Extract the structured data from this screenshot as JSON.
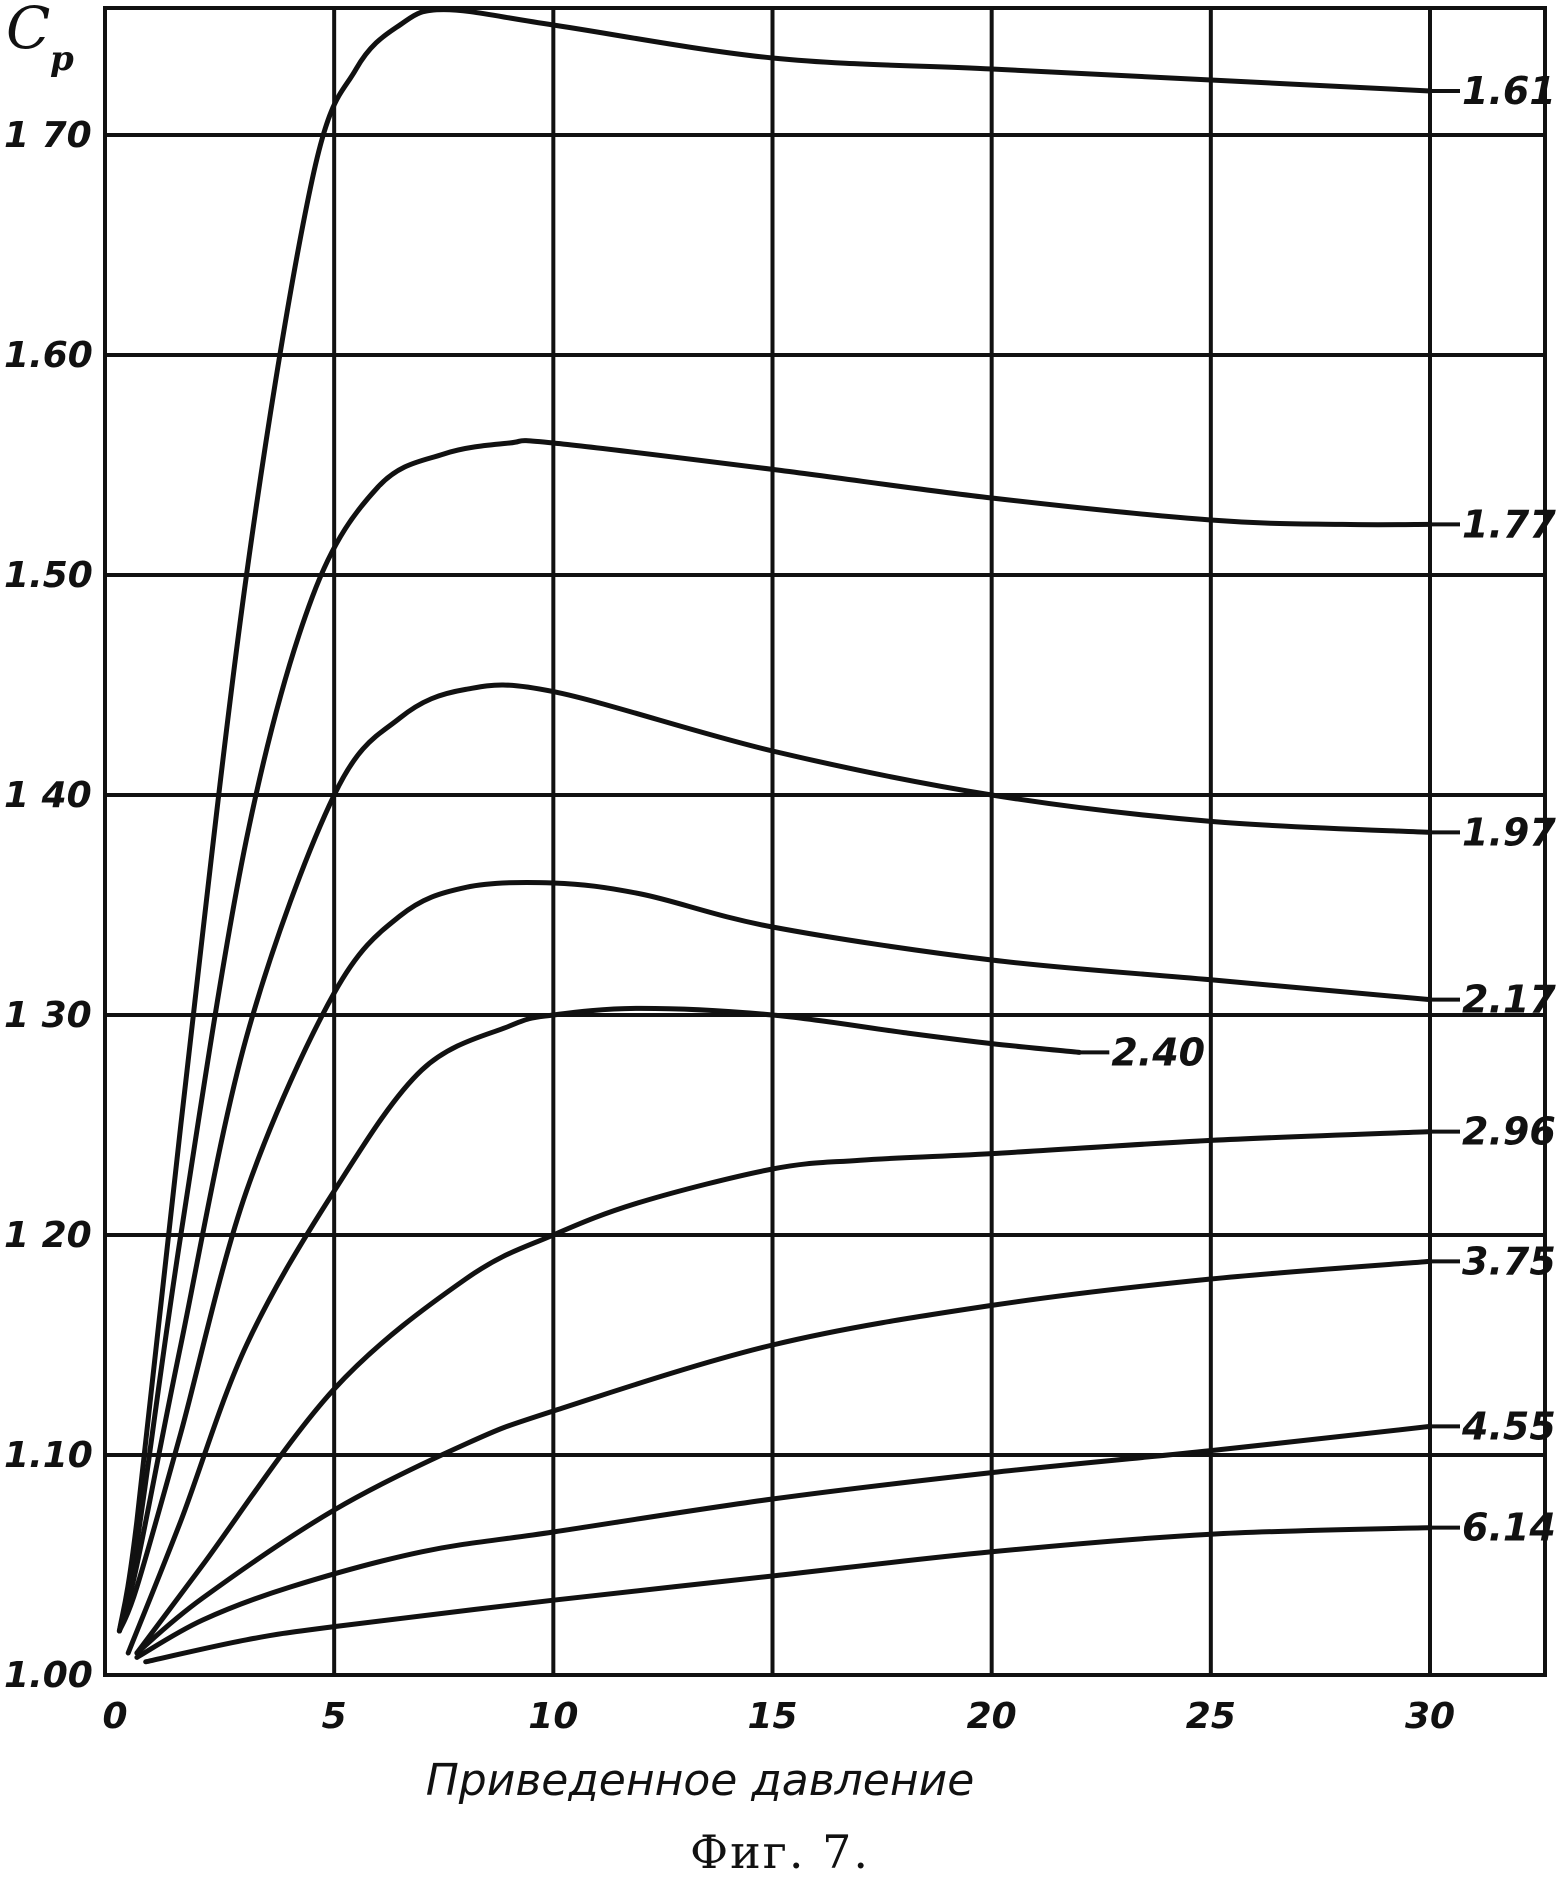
{
  "chart_data": {
    "type": "line",
    "xlabel": "Приведенное давление",
    "ylabel_main": "C",
    "ylabel_sub": "p",
    "caption": "Фиг. 7.",
    "xlim": [
      0,
      32
    ],
    "ylim": [
      1.0,
      1.76
    ],
    "x_ticks": [
      {
        "value": 0,
        "label": "0"
      },
      {
        "value": 5,
        "label": "5"
      },
      {
        "value": 10,
        "label": "10"
      },
      {
        "value": 15,
        "label": "15"
      },
      {
        "value": 20,
        "label": "20"
      },
      {
        "value": 25,
        "label": "25"
      },
      {
        "value": 30,
        "label": "30"
      }
    ],
    "y_ticks": [
      {
        "value": 1.0,
        "label": "1.00"
      },
      {
        "value": 1.1,
        "label": "1.10"
      },
      {
        "value": 1.2,
        "label": "1 20"
      },
      {
        "value": 1.3,
        "label": "1 30"
      },
      {
        "value": 1.4,
        "label": "1 40"
      },
      {
        "value": 1.5,
        "label": "1.50"
      },
      {
        "value": 1.6,
        "label": "1.60"
      },
      {
        "value": 1.7,
        "label": "1 70"
      }
    ],
    "grid": true,
    "series": [
      {
        "name": "1.61",
        "x": [
          0.1,
          0.5,
          1.5,
          3,
          4.5,
          5.5,
          6.5,
          7.5,
          10,
          15,
          20,
          25,
          30
        ],
        "y": [
          1.02,
          1.07,
          1.25,
          1.5,
          1.68,
          1.73,
          1.75,
          1.757,
          1.75,
          1.735,
          1.73,
          1.725,
          1.72
        ]
      },
      {
        "name": "1.77",
        "x": [
          0.1,
          0.5,
          1.5,
          3,
          4.5,
          6,
          7.5,
          9,
          10,
          15,
          20,
          25,
          28,
          30
        ],
        "y": [
          1.02,
          1.06,
          1.2,
          1.38,
          1.49,
          1.54,
          1.555,
          1.56,
          1.56,
          1.548,
          1.535,
          1.525,
          1.523,
          1.523
        ]
      },
      {
        "name": "1.97",
        "x": [
          0.1,
          0.5,
          1.5,
          3,
          5,
          6.5,
          8,
          10,
          15,
          20,
          25,
          30
        ],
        "y": [
          1.02,
          1.05,
          1.15,
          1.29,
          1.4,
          1.435,
          1.448,
          1.447,
          1.42,
          1.4,
          1.388,
          1.383
        ]
      },
      {
        "name": "2.17",
        "x": [
          0.1,
          0.5,
          1.5,
          3,
          5,
          6.5,
          8,
          10,
          12,
          15,
          20,
          25,
          30
        ],
        "y": [
          1.02,
          1.04,
          1.11,
          1.22,
          1.31,
          1.345,
          1.358,
          1.36,
          1.355,
          1.34,
          1.325,
          1.316,
          1.307
        ]
      },
      {
        "name": "2.40",
        "x": [
          0.3,
          1.5,
          3,
          5,
          7,
          9,
          10,
          12,
          15,
          18,
          20,
          22
        ],
        "y": [
          1.01,
          1.07,
          1.15,
          1.22,
          1.275,
          1.295,
          1.3,
          1.303,
          1.3,
          1.292,
          1.287,
          1.283
        ]
      },
      {
        "name": "2.96",
        "x": [
          0.5,
          2,
          5,
          8,
          10,
          12,
          15,
          17,
          20,
          25,
          30
        ],
        "y": [
          1.01,
          1.05,
          1.13,
          1.18,
          1.2,
          1.215,
          1.23,
          1.234,
          1.237,
          1.243,
          1.247
        ]
      },
      {
        "name": "3.75",
        "x": [
          0.5,
          2,
          5,
          8,
          10,
          15,
          20,
          25,
          30
        ],
        "y": [
          1.01,
          1.035,
          1.075,
          1.105,
          1.12,
          1.15,
          1.168,
          1.18,
          1.188
        ]
      },
      {
        "name": "4.55",
        "x": [
          0.5,
          2,
          4,
          7,
          10,
          15,
          20,
          25,
          30
        ],
        "y": [
          1.008,
          1.025,
          1.04,
          1.056,
          1.065,
          1.08,
          1.092,
          1.102,
          1.113
        ]
      },
      {
        "name": "6.14",
        "x": [
          0.7,
          3,
          5,
          10,
          15,
          20,
          25,
          30
        ],
        "y": [
          1.006,
          1.016,
          1.022,
          1.034,
          1.045,
          1.056,
          1.064,
          1.067
        ]
      }
    ]
  }
}
